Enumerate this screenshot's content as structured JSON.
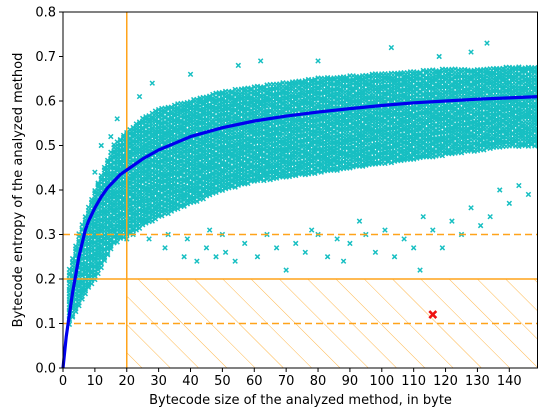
{
  "chart_data": {
    "type": "scatter",
    "title": "",
    "xlabel": "Bytecode size of the analyzed method, in byte",
    "ylabel": "Bytecode entropy of the analyzed method",
    "xlim": [
      0,
      149
    ],
    "ylim": [
      0,
      0.8
    ],
    "xticks": [
      0,
      10,
      20,
      30,
      40,
      50,
      60,
      70,
      80,
      90,
      100,
      110,
      120,
      130,
      140
    ],
    "yticks": [
      0.0,
      0.1,
      0.2,
      0.3,
      0.4,
      0.5,
      0.6,
      0.7,
      0.8
    ],
    "grid": false,
    "legend": false,
    "colors": {
      "points": "#17bfc2",
      "fit_curve": "#0000ee",
      "thresholds": "#ffa31a",
      "highlight": "#ee1111"
    },
    "series": [
      {
        "type": "scatter",
        "marker": "x",
        "description_points": "dense band",
        "band_upper": [
          [
            2,
            0.22
          ],
          [
            5,
            0.3
          ],
          [
            8,
            0.36
          ],
          [
            10,
            0.4
          ],
          [
            13,
            0.45
          ],
          [
            16,
            0.5
          ],
          [
            20,
            0.53
          ],
          [
            25,
            0.56
          ],
          [
            30,
            0.58
          ],
          [
            40,
            0.6
          ],
          [
            50,
            0.62
          ],
          [
            60,
            0.63
          ],
          [
            70,
            0.64
          ],
          [
            80,
            0.65
          ],
          [
            90,
            0.655
          ],
          [
            100,
            0.66
          ],
          [
            110,
            0.665
          ],
          [
            120,
            0.67
          ],
          [
            130,
            0.67
          ],
          [
            140,
            0.675
          ],
          [
            149,
            0.675
          ]
        ],
        "band_lower": [
          [
            2,
            0.1
          ],
          [
            5,
            0.14
          ],
          [
            8,
            0.18
          ],
          [
            10,
            0.2
          ],
          [
            13,
            0.24
          ],
          [
            16,
            0.28
          ],
          [
            20,
            0.3
          ],
          [
            25,
            0.32
          ],
          [
            30,
            0.34
          ],
          [
            40,
            0.37
          ],
          [
            50,
            0.4
          ],
          [
            60,
            0.42
          ],
          [
            70,
            0.43
          ],
          [
            80,
            0.44
          ],
          [
            90,
            0.45
          ],
          [
            100,
            0.46
          ],
          [
            110,
            0.47
          ],
          [
            120,
            0.48
          ],
          [
            130,
            0.49
          ],
          [
            140,
            0.5
          ],
          [
            149,
            0.5
          ]
        ],
        "outliers": [
          [
            20,
            0.29
          ],
          [
            22,
            0.3
          ],
          [
            27,
            0.29
          ],
          [
            32,
            0.27
          ],
          [
            33,
            0.3
          ],
          [
            38,
            0.25
          ],
          [
            39,
            0.29
          ],
          [
            42,
            0.24
          ],
          [
            45,
            0.27
          ],
          [
            46,
            0.31
          ],
          [
            48,
            0.25
          ],
          [
            50,
            0.3
          ],
          [
            51,
            0.26
          ],
          [
            54,
            0.24
          ],
          [
            57,
            0.28
          ],
          [
            61,
            0.25
          ],
          [
            64,
            0.3
          ],
          [
            67,
            0.27
          ],
          [
            70,
            0.22
          ],
          [
            73,
            0.28
          ],
          [
            76,
            0.26
          ],
          [
            78,
            0.31
          ],
          [
            80,
            0.3
          ],
          [
            83,
            0.25
          ],
          [
            86,
            0.29
          ],
          [
            88,
            0.24
          ],
          [
            90,
            0.28
          ],
          [
            93,
            0.33
          ],
          [
            95,
            0.3
          ],
          [
            98,
            0.26
          ],
          [
            101,
            0.31
          ],
          [
            104,
            0.25
          ],
          [
            107,
            0.29
          ],
          [
            110,
            0.27
          ],
          [
            112,
            0.22
          ],
          [
            113,
            0.34
          ],
          [
            116,
            0.31
          ],
          [
            119,
            0.27
          ],
          [
            122,
            0.33
          ],
          [
            125,
            0.3
          ],
          [
            128,
            0.36
          ],
          [
            131,
            0.32
          ],
          [
            134,
            0.34
          ],
          [
            137,
            0.4
          ],
          [
            140,
            0.37
          ],
          [
            143,
            0.41
          ],
          [
            146,
            0.39
          ],
          [
            103,
            0.72
          ],
          [
            133,
            0.73
          ],
          [
            128,
            0.71
          ],
          [
            118,
            0.7
          ],
          [
            80,
            0.69
          ],
          [
            55,
            0.68
          ],
          [
            62,
            0.69
          ],
          [
            40,
            0.66
          ],
          [
            28,
            0.64
          ],
          [
            24,
            0.61
          ],
          [
            17,
            0.56
          ],
          [
            15,
            0.52
          ],
          [
            12,
            0.5
          ],
          [
            10,
            0.44
          ]
        ]
      },
      {
        "type": "line",
        "description": "fit curve",
        "x": [
          0,
          1,
          2,
          3,
          4,
          5,
          6,
          7,
          8,
          10,
          12,
          14,
          16,
          18,
          20,
          25,
          30,
          35,
          40,
          50,
          60,
          70,
          80,
          90,
          100,
          110,
          120,
          130,
          140,
          149
        ],
        "y": [
          0.0,
          0.07,
          0.12,
          0.17,
          0.21,
          0.25,
          0.28,
          0.31,
          0.33,
          0.36,
          0.385,
          0.405,
          0.42,
          0.435,
          0.445,
          0.47,
          0.49,
          0.505,
          0.52,
          0.54,
          0.555,
          0.566,
          0.575,
          0.583,
          0.59,
          0.596,
          0.6,
          0.604,
          0.607,
          0.61
        ]
      }
    ],
    "threshold_lines": {
      "vertical_solid_x": 20,
      "horizontal_solid_y": 0.2,
      "horizontal_dashed_y": [
        0.3,
        0.1
      ]
    },
    "hatched_region": {
      "x": [
        20,
        149
      ],
      "y": [
        0.0,
        0.2
      ]
    },
    "highlight_point": {
      "x": 116,
      "y": 0.12
    }
  }
}
